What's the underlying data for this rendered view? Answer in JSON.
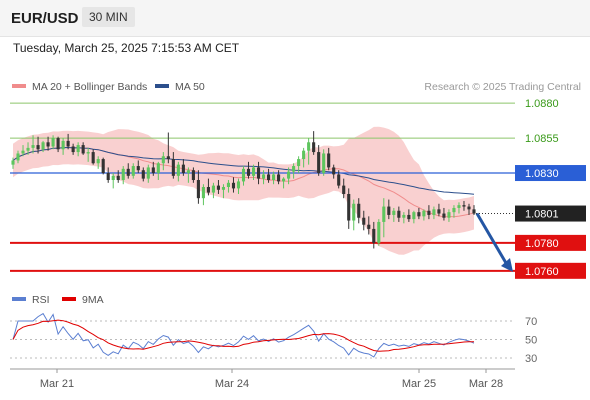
{
  "header": {
    "symbol": "EUR/USD",
    "timeframe": "30 MIN",
    "datetime": "Tuesday, March 25, 2025 7:15:53 AM CET"
  },
  "legend": [
    {
      "label": "MA 20 + Bollinger Bands",
      "color": "#f08c8c"
    },
    {
      "label": "MA 50",
      "color": "#2c4f8c"
    }
  ],
  "credit": "Research © 2025 Trading Central",
  "rsi_legend": [
    {
      "label": "RSI",
      "color": "#5b7fd1"
    },
    {
      "label": "9MA",
      "color": "#e00000"
    }
  ],
  "colors": {
    "bull": "#5ec55e",
    "bear": "#333333",
    "target_line": "#8cc56a",
    "target_text": "#3a9a1a",
    "pivot": "#2a5fd6",
    "support": "#e01010",
    "current": "#222222",
    "bands": "#f7c0c0",
    "arrow": "#2456a4"
  },
  "chart_data": {
    "type": "candlestick",
    "x_labels": [
      "Mar 21",
      "Mar 24",
      "Mar 25",
      "Mar 28"
    ],
    "ylim": [
      1.0752,
      1.0888
    ],
    "levels": [
      {
        "value": 1.088,
        "label": "1.0880",
        "role": "target"
      },
      {
        "value": 1.0855,
        "label": "1.0855",
        "role": "target"
      },
      {
        "value": 1.083,
        "label": "1.0830",
        "role": "pivot"
      },
      {
        "value": 1.0801,
        "label": "1.0801",
        "role": "current"
      },
      {
        "value": 1.078,
        "label": "1.0780",
        "role": "support"
      },
      {
        "value": 1.076,
        "label": "1.0760",
        "role": "support"
      }
    ],
    "candles": [
      [
        1.0836,
        1.0841,
        1.0833,
        1.0839
      ],
      [
        1.0839,
        1.0846,
        1.0837,
        1.0844
      ],
      [
        1.0844,
        1.085,
        1.0842,
        1.0846
      ],
      [
        1.0846,
        1.0852,
        1.0843,
        1.0848
      ],
      [
        1.0848,
        1.0857,
        1.0844,
        1.085
      ],
      [
        1.085,
        1.0856,
        1.0844,
        1.0847
      ],
      [
        1.0847,
        1.0853,
        1.0845,
        1.0852
      ],
      [
        1.0852,
        1.0856,
        1.0846,
        1.0849
      ],
      [
        1.0849,
        1.0857,
        1.0847,
        1.0855
      ],
      [
        1.0855,
        1.0856,
        1.0845,
        1.0847
      ],
      [
        1.0847,
        1.0855,
        1.0843,
        1.0853
      ],
      [
        1.0853,
        1.0858,
        1.0847,
        1.0849
      ],
      [
        1.0849,
        1.0851,
        1.0843,
        1.0845
      ],
      [
        1.0845,
        1.0852,
        1.0842,
        1.085
      ],
      [
        1.085,
        1.0852,
        1.0843,
        1.0844
      ],
      [
        1.0844,
        1.0848,
        1.0838,
        1.0845
      ],
      [
        1.0845,
        1.0847,
        1.0836,
        1.0837
      ],
      [
        1.0837,
        1.0842,
        1.0833,
        1.084
      ],
      [
        1.084,
        1.0841,
        1.0829,
        1.083
      ],
      [
        1.083,
        1.0834,
        1.0823,
        1.0825
      ],
      [
        1.0825,
        1.083,
        1.0819,
        1.0828
      ],
      [
        1.0828,
        1.0832,
        1.0823,
        1.0825
      ],
      [
        1.0825,
        1.0835,
        1.0822,
        1.0833
      ],
      [
        1.0833,
        1.0837,
        1.0826,
        1.0828
      ],
      [
        1.0828,
        1.0837,
        1.0826,
        1.0835
      ],
      [
        1.0835,
        1.0839,
        1.083,
        1.0832
      ],
      [
        1.0832,
        1.0834,
        1.0824,
        1.0826
      ],
      [
        1.0826,
        1.0836,
        1.0823,
        1.0834
      ],
      [
        1.0834,
        1.0838,
        1.0828,
        1.083
      ],
      [
        1.083,
        1.0838,
        1.0825,
        1.0837
      ],
      [
        1.0837,
        1.0845,
        1.0832,
        1.0842
      ],
      [
        1.0842,
        1.0859,
        1.0837,
        1.084
      ],
      [
        1.084,
        1.0845,
        1.0826,
        1.0828
      ],
      [
        1.0828,
        1.0838,
        1.0824,
        1.0836
      ],
      [
        1.0836,
        1.084,
        1.0828,
        1.083
      ],
      [
        1.083,
        1.0834,
        1.0823,
        1.0832
      ],
      [
        1.0832,
        1.0834,
        1.0823,
        1.0825
      ],
      [
        1.0825,
        1.0832,
        1.0808,
        1.0812
      ],
      [
        1.0812,
        1.0822,
        1.0807,
        1.082
      ],
      [
        1.082,
        1.0826,
        1.0814,
        1.0816
      ],
      [
        1.0816,
        1.0823,
        1.0812,
        1.0821
      ],
      [
        1.0821,
        1.0825,
        1.0815,
        1.0818
      ],
      [
        1.0818,
        1.0822,
        1.0812,
        1.082
      ],
      [
        1.082,
        1.0825,
        1.0816,
        1.0823
      ],
      [
        1.0823,
        1.0827,
        1.0816,
        1.0819
      ],
      [
        1.0819,
        1.0826,
        1.0815,
        1.0824
      ],
      [
        1.0824,
        1.0835,
        1.0821,
        1.0833
      ],
      [
        1.0833,
        1.0838,
        1.0826,
        1.0828
      ],
      [
        1.0828,
        1.0836,
        1.0825,
        1.0834
      ],
      [
        1.0834,
        1.0838,
        1.0822,
        1.0826
      ],
      [
        1.0826,
        1.0832,
        1.0822,
        1.0829
      ],
      [
        1.0829,
        1.0833,
        1.0823,
        1.0825
      ],
      [
        1.0825,
        1.0831,
        1.0822,
        1.0829
      ],
      [
        1.0829,
        1.0832,
        1.0822,
        1.0824
      ],
      [
        1.0824,
        1.0827,
        1.0819,
        1.0826
      ],
      [
        1.0826,
        1.0834,
        1.0822,
        1.0831
      ],
      [
        1.0831,
        1.0837,
        1.0826,
        1.0835
      ],
      [
        1.0835,
        1.0842,
        1.083,
        1.084
      ],
      [
        1.084,
        1.0848,
        1.0834,
        1.0846
      ],
      [
        1.0846,
        1.0855,
        1.0836,
        1.0852
      ],
      [
        1.0852,
        1.086,
        1.0843,
        1.0845
      ],
      [
        1.0845,
        1.085,
        1.0828,
        1.083
      ],
      [
        1.083,
        1.0847,
        1.0828,
        1.0844
      ],
      [
        1.0844,
        1.0848,
        1.0832,
        1.0834
      ],
      [
        1.0834,
        1.0836,
        1.0826,
        1.0829
      ],
      [
        1.0829,
        1.0832,
        1.0819,
        1.0821
      ],
      [
        1.0821,
        1.0826,
        1.0812,
        1.0815
      ],
      [
        1.0815,
        1.0819,
        1.079,
        1.0796
      ],
      [
        1.0796,
        1.0811,
        1.0789,
        1.0808
      ],
      [
        1.0808,
        1.0812,
        1.0794,
        1.0798
      ],
      [
        1.0798,
        1.0803,
        1.0789,
        1.0793
      ],
      [
        1.0793,
        1.0799,
        1.0786,
        1.079
      ],
      [
        1.079,
        1.0795,
        1.0776,
        1.078
      ],
      [
        1.078,
        1.0797,
        1.0778,
        1.0795
      ],
      [
        1.0795,
        1.0812,
        1.0784,
        1.0806
      ],
      [
        1.0806,
        1.0811,
        1.0797,
        1.08
      ],
      [
        1.08,
        1.0805,
        1.0795,
        1.0803
      ],
      [
        1.0803,
        1.0806,
        1.0795,
        1.0798
      ],
      [
        1.0798,
        1.0802,
        1.0794,
        1.08
      ],
      [
        1.08,
        1.0804,
        1.0795,
        1.0797
      ],
      [
        1.0797,
        1.0803,
        1.0794,
        1.0802
      ],
      [
        1.0802,
        1.0805,
        1.0797,
        1.0799
      ],
      [
        1.0799,
        1.0804,
        1.0796,
        1.0803
      ],
      [
        1.0803,
        1.0807,
        1.0797,
        1.08
      ],
      [
        1.08,
        1.0806,
        1.0797,
        1.0804
      ],
      [
        1.0804,
        1.0808,
        1.0799,
        1.0801
      ],
      [
        1.0801,
        1.0805,
        1.0796,
        1.0798
      ],
      [
        1.0798,
        1.0804,
        1.0795,
        1.0802
      ],
      [
        1.0802,
        1.0807,
        1.0798,
        1.0805
      ],
      [
        1.0805,
        1.0809,
        1.0801,
        1.0807
      ],
      [
        1.0807,
        1.081,
        1.0803,
        1.0806
      ],
      [
        1.0806,
        1.0808,
        1.08,
        1.0804
      ],
      [
        1.0804,
        1.0807,
        1.08,
        1.0801
      ]
    ],
    "rsi_axis": [
      30,
      50,
      70
    ]
  }
}
